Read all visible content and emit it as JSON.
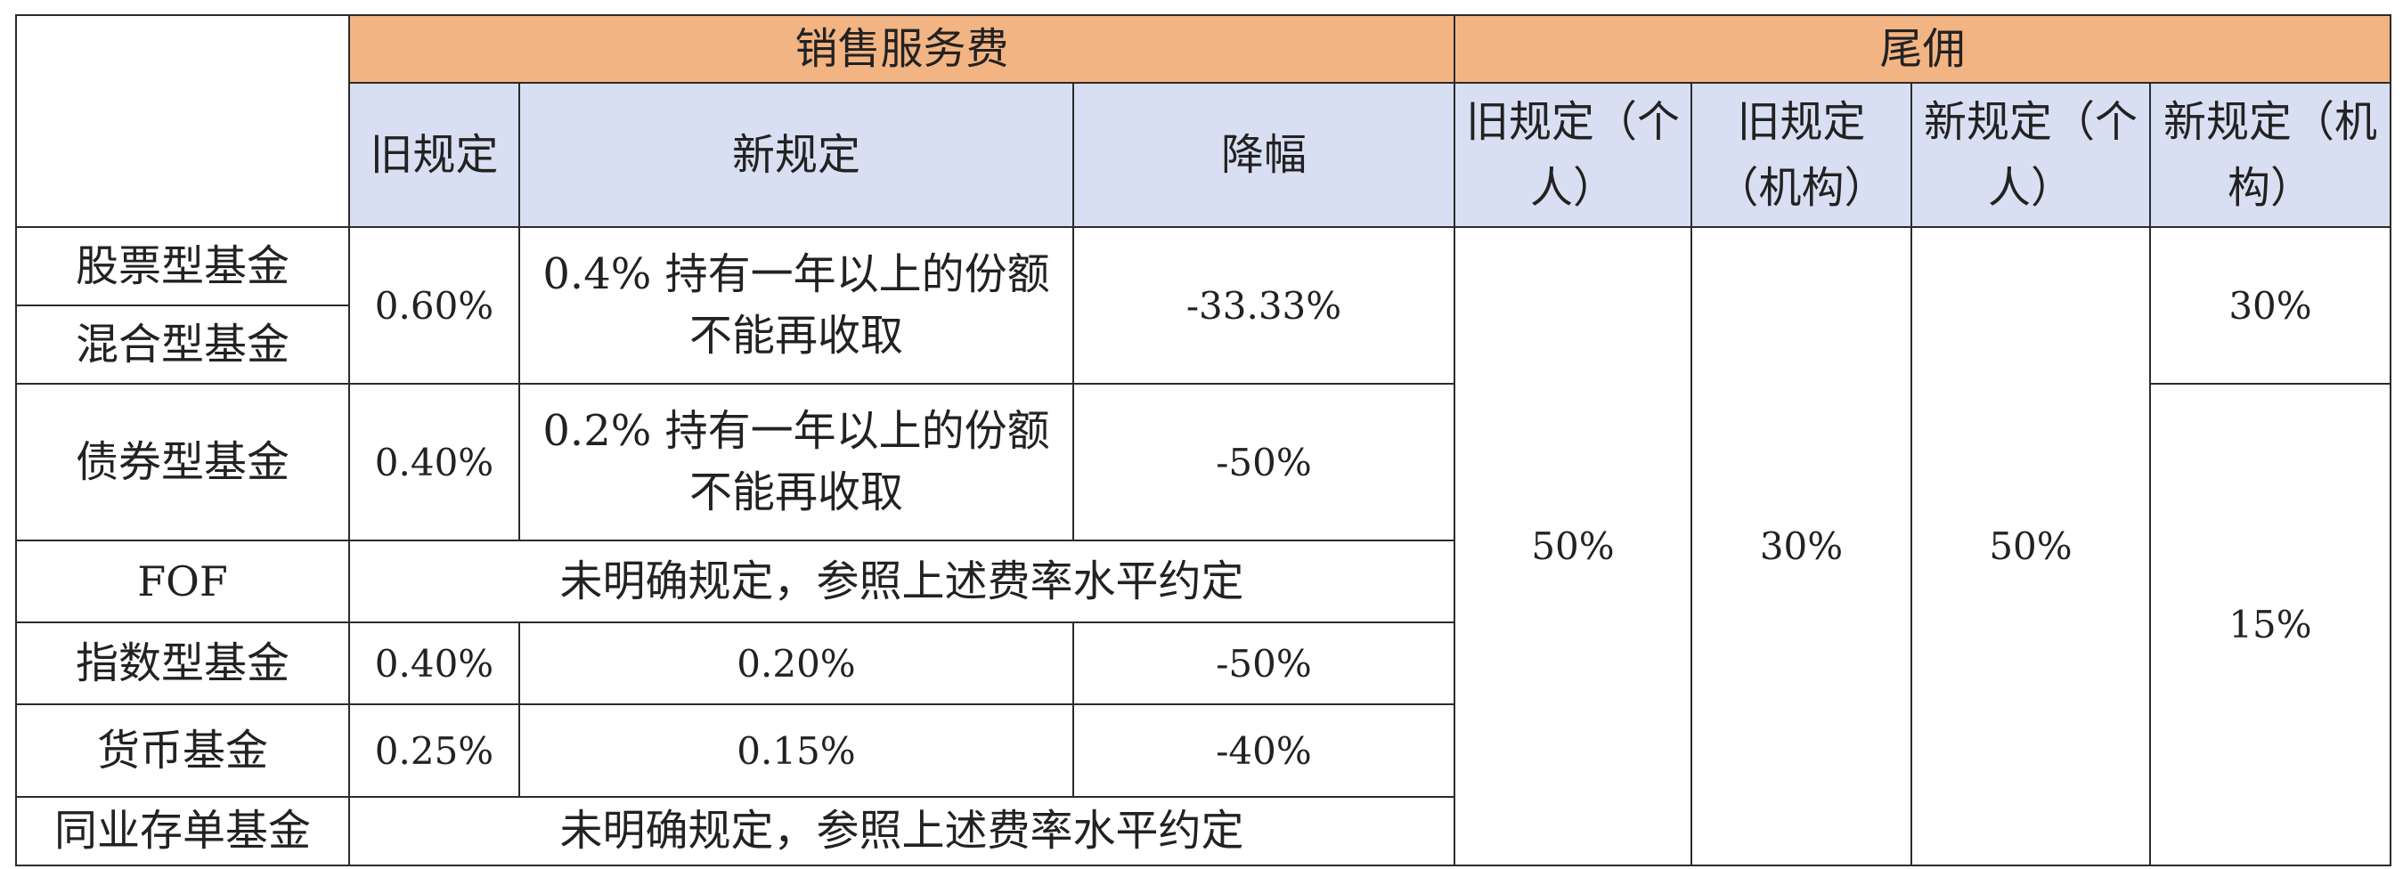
{
  "header": {
    "sales_service_fee": "销售服务费",
    "trailer_fee": "尾佣"
  },
  "subheader": {
    "old_rule": "旧规定",
    "new_rule": "新规定",
    "decline": "降幅",
    "old_individual": "旧规定（个人）",
    "old_institution": "旧规定（机构）",
    "new_individual": "新规定（个人）",
    "new_institution": "新规定（机构）"
  },
  "rows": {
    "stock": {
      "name": "股票型基金"
    },
    "hybrid": {
      "name": "混合型基金"
    },
    "stock_hybrid": {
      "old": "0.60%",
      "new": "0.4% 持有一年以上的份额不能再收取",
      "decline": "-33.33%"
    },
    "bond": {
      "name": "债券型基金",
      "old": "0.40%",
      "new": "0.2% 持有一年以上的份额不能再收取",
      "decline": "-50%"
    },
    "fof": {
      "name": "FOF",
      "note": "未明确规定，参照上述费率水平约定"
    },
    "index": {
      "name": "指数型基金",
      "old": "0.40%",
      "new": "0.20%",
      "decline": "-50%"
    },
    "money": {
      "name": "货币基金",
      "old": "0.25%",
      "new": "0.15%",
      "decline": "-40%"
    },
    "interbank_cd": {
      "name": "同业存单基金",
      "note": "未明确规定，参照上述费率水平约定"
    }
  },
  "trailer": {
    "old_individual": "50%",
    "old_institution": "30%",
    "new_individual": "50%",
    "new_institution_top": "30%",
    "new_institution_rest": "15%"
  },
  "colors": {
    "header_orange": "#f3b483",
    "subheader_blue": "#d9dff2",
    "border": "#2b2b2b"
  }
}
